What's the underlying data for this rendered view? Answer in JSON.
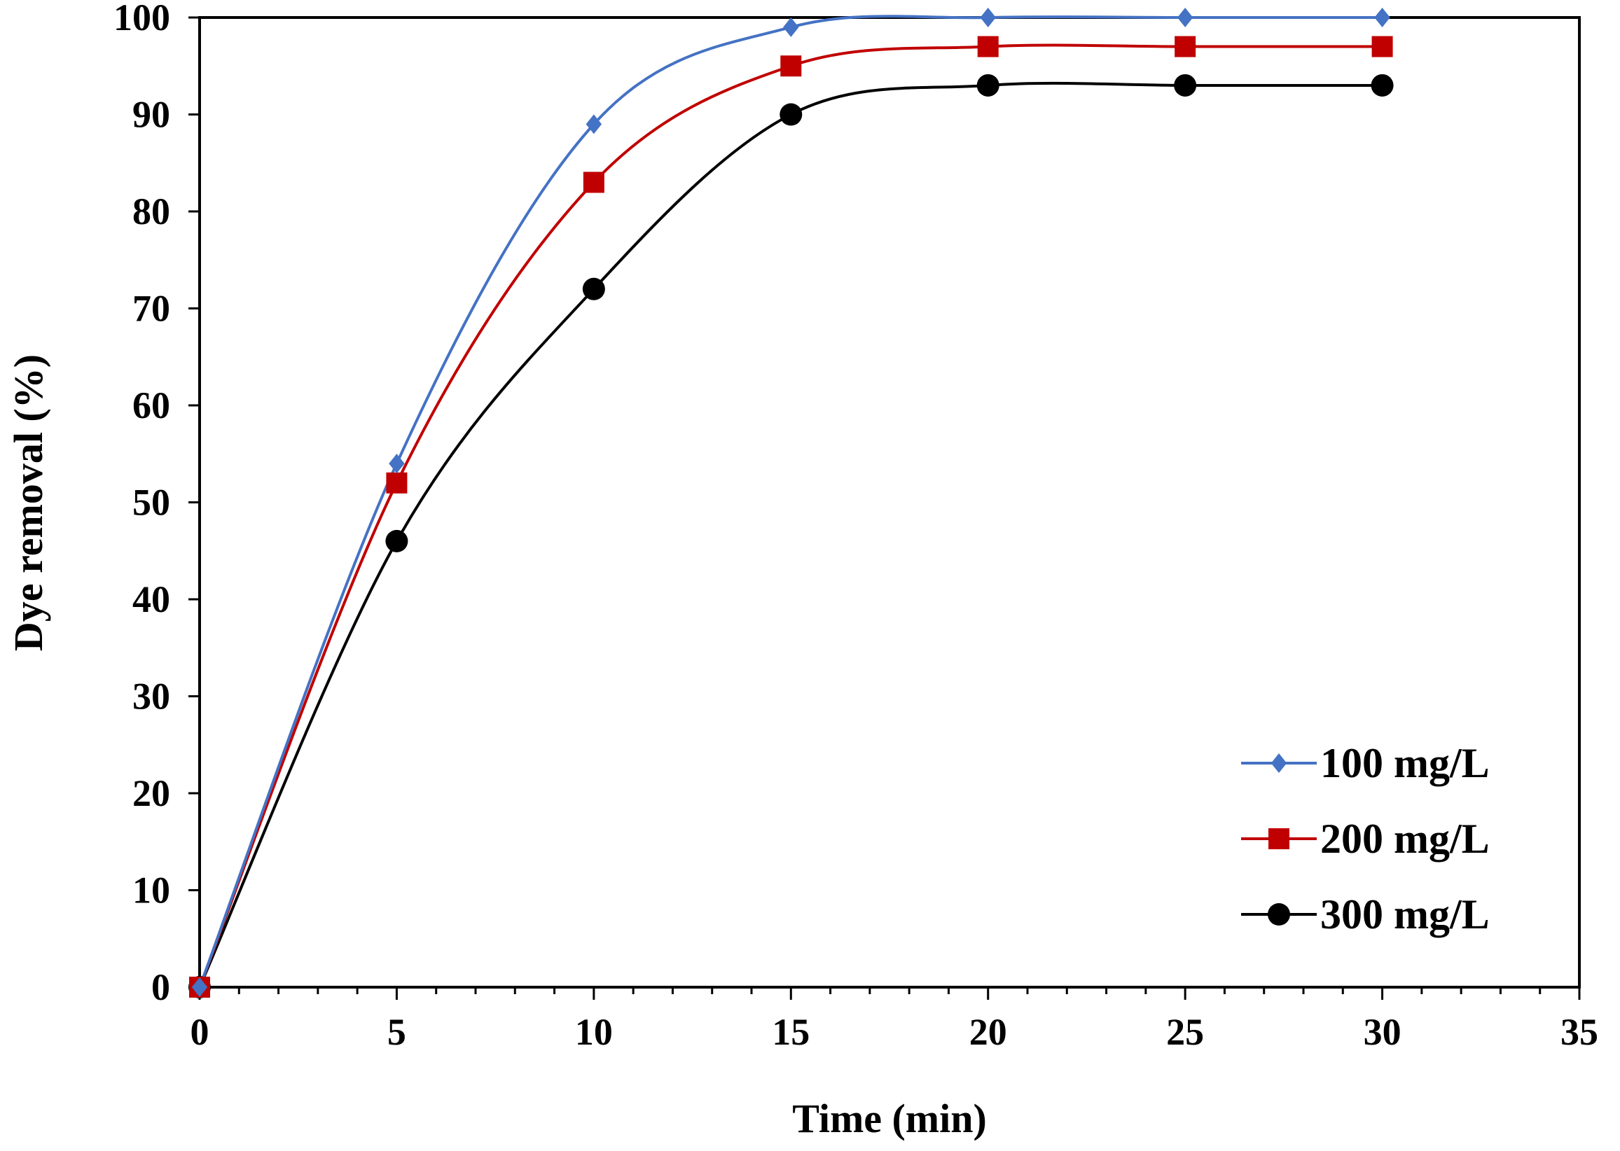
{
  "chart_data": {
    "type": "line",
    "title": "",
    "xlabel": "Time (min)",
    "ylabel": "Dye removal (%)",
    "xlim": [
      0,
      35
    ],
    "ylim": [
      0,
      100
    ],
    "xticks": [
      0,
      5,
      10,
      15,
      20,
      25,
      30,
      35
    ],
    "yticks": [
      0,
      10,
      20,
      30,
      40,
      50,
      60,
      70,
      80,
      90,
      100
    ],
    "grid": false,
    "legend_position": "bottom-right",
    "smooth": true,
    "x": [
      0,
      5,
      10,
      15,
      20,
      25,
      30
    ],
    "series": [
      {
        "name": "100 mg/L",
        "values": [
          0,
          54,
          89,
          99,
          100,
          100,
          100
        ],
        "color": "#4472C4",
        "marker": "diamond"
      },
      {
        "name": "200 mg/L",
        "values": [
          0,
          52,
          83,
          95,
          97,
          97,
          97
        ],
        "color": "#C00000",
        "marker": "square"
      },
      {
        "name": "300 mg/L",
        "values": [
          0,
          46,
          72,
          90,
          93,
          93,
          93
        ],
        "color": "#000000",
        "marker": "circle"
      }
    ]
  }
}
